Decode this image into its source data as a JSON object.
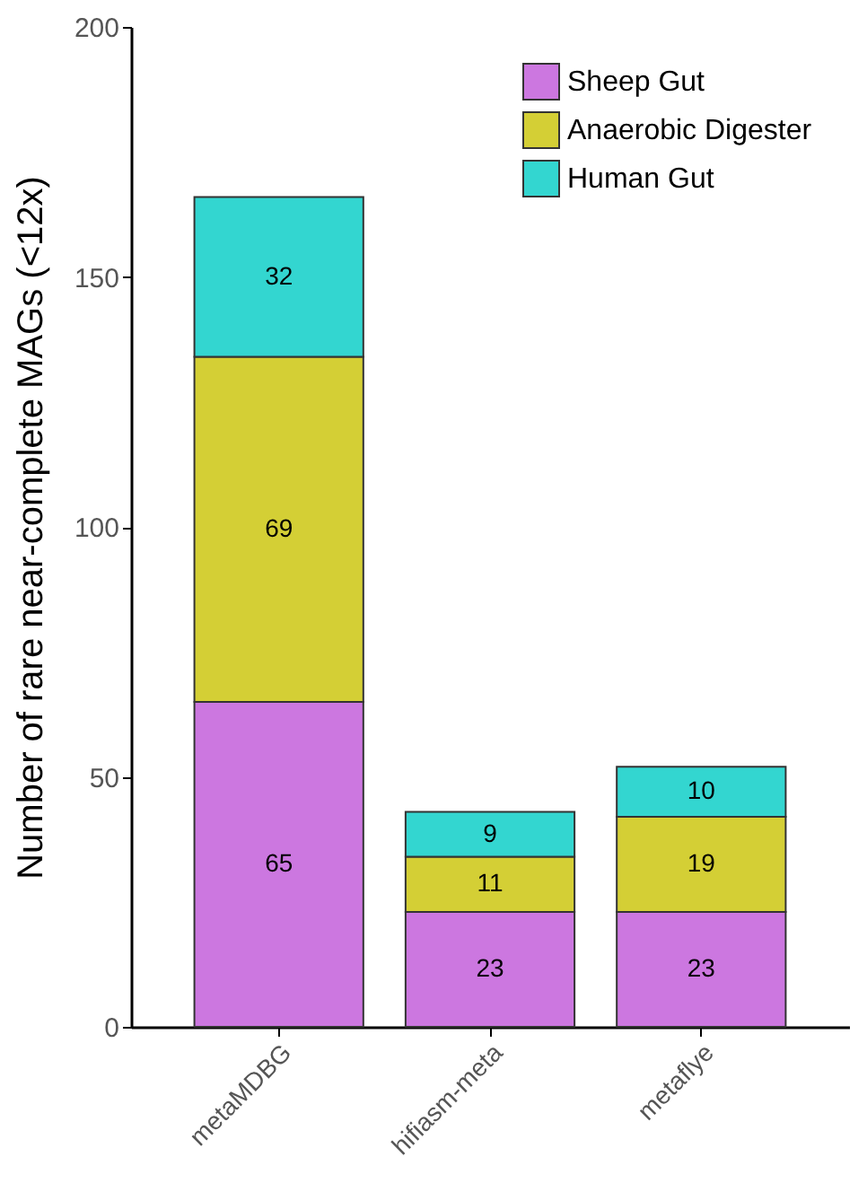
{
  "chart_data": {
    "type": "bar",
    "ylabel": "Number of rare near-complete MAGs (<12x)",
    "categories": [
      "metaMDBG",
      "hifiasm-meta",
      "metaflye"
    ],
    "stacked": true,
    "ylim": [
      0,
      200
    ],
    "yticks": [
      0,
      50,
      100,
      150,
      200
    ],
    "grid": false,
    "legend": "top right",
    "data_labels": true,
    "series": [
      {
        "name": "Sheep Gut",
        "color": "#cc77e0",
        "values": [
          65,
          23,
          23
        ]
      },
      {
        "name": "Anaerobic Digester",
        "color": "#d4cf35",
        "values": [
          69,
          11,
          19
        ]
      },
      {
        "name": "Human Gut",
        "color": "#33d6d0",
        "values": [
          32,
          9,
          10
        ]
      }
    ]
  }
}
